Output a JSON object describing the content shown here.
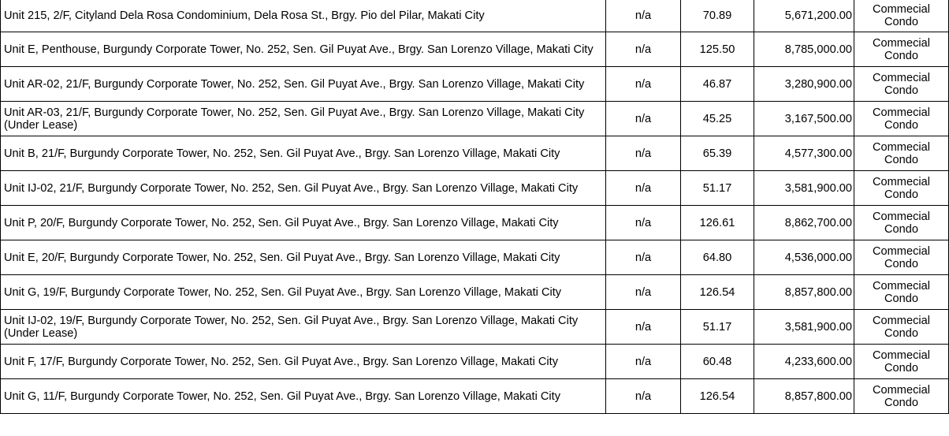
{
  "rows": [
    {
      "address": "Unit 215, 2/F, Cityland Dela Rosa Condominium, Dela Rosa St., Brgy. Pio del Pilar, Makati City",
      "lot": "n/a",
      "area": "70.89",
      "price": "5,671,200.00",
      "type_line1": "Commecial",
      "type_line2": "Condo"
    },
    {
      "address": "Unit E, Penthouse, Burgundy Corporate Tower, No. 252, Sen. Gil Puyat Ave., Brgy. San Lorenzo Village, Makati City",
      "lot": "n/a",
      "area": "125.50",
      "price": "8,785,000.00",
      "type_line1": "Commecial",
      "type_line2": "Condo"
    },
    {
      "address": "Unit AR-02, 21/F, Burgundy Corporate Tower, No. 252, Sen. Gil Puyat Ave., Brgy. San Lorenzo Village, Makati City",
      "lot": "n/a",
      "area": "46.87",
      "price": "3,280,900.00",
      "type_line1": "Commecial",
      "type_line2": "Condo"
    },
    {
      "address": "Unit AR-03, 21/F, Burgundy Corporate Tower, No. 252, Sen. Gil Puyat Ave., Brgy. San Lorenzo Village, Makati City (Under Lease)",
      "lot": "n/a",
      "area": "45.25",
      "price": "3,167,500.00",
      "type_line1": "Commecial",
      "type_line2": "Condo"
    },
    {
      "address": "Unit B, 21/F, Burgundy Corporate Tower, No. 252, Sen. Gil Puyat Ave., Brgy. San Lorenzo Village, Makati City",
      "lot": "n/a",
      "area": "65.39",
      "price": "4,577,300.00",
      "type_line1": "Commecial",
      "type_line2": "Condo"
    },
    {
      "address": "Unit IJ-02, 21/F, Burgundy Corporate Tower, No. 252, Sen. Gil Puyat Ave., Brgy. San Lorenzo Village, Makati City",
      "lot": "n/a",
      "area": "51.17",
      "price": "3,581,900.00",
      "type_line1": "Commecial",
      "type_line2": "Condo"
    },
    {
      "address": "Unit P, 20/F, Burgundy Corporate Tower, No. 252, Sen. Gil Puyat Ave., Brgy. San Lorenzo Village, Makati City",
      "lot": "n/a",
      "area": "126.61",
      "price": "8,862,700.00",
      "type_line1": "Commecial",
      "type_line2": "Condo"
    },
    {
      "address": "Unit E, 20/F, Burgundy Corporate Tower, No. 252, Sen. Gil Puyat Ave., Brgy. San Lorenzo Village, Makati City",
      "lot": "n/a",
      "area": "64.80",
      "price": "4,536,000.00",
      "type_line1": "Commecial",
      "type_line2": "Condo"
    },
    {
      "address": "Unit G, 19/F, Burgundy Corporate Tower, No. 252, Sen. Gil Puyat Ave., Brgy. San Lorenzo Village, Makati City",
      "lot": "n/a",
      "area": "126.54",
      "price": "8,857,800.00",
      "type_line1": "Commecial",
      "type_line2": "Condo"
    },
    {
      "address": "Unit IJ-02, 19/F, Burgundy Corporate Tower, No. 252, Sen. Gil Puyat Ave., Brgy. San Lorenzo Village, Makati City (Under Lease)",
      "lot": "n/a",
      "area": "51.17",
      "price": "3,581,900.00",
      "type_line1": "Commecial",
      "type_line2": "Condo"
    },
    {
      "address": "Unit F, 17/F, Burgundy Corporate Tower, No. 252, Sen. Gil Puyat Ave., Brgy. San Lorenzo Village, Makati City",
      "lot": "n/a",
      "area": "60.48",
      "price": "4,233,600.00",
      "type_line1": "Commecial",
      "type_line2": "Condo"
    },
    {
      "address": "Unit G, 11/F, Burgundy Corporate Tower, No. 252, Sen. Gil Puyat Ave., Brgy. San Lorenzo Village, Makati City",
      "lot": "n/a",
      "area": "126.54",
      "price": "8,857,800.00",
      "type_line1": "Commecial",
      "type_line2": "Condo"
    }
  ]
}
